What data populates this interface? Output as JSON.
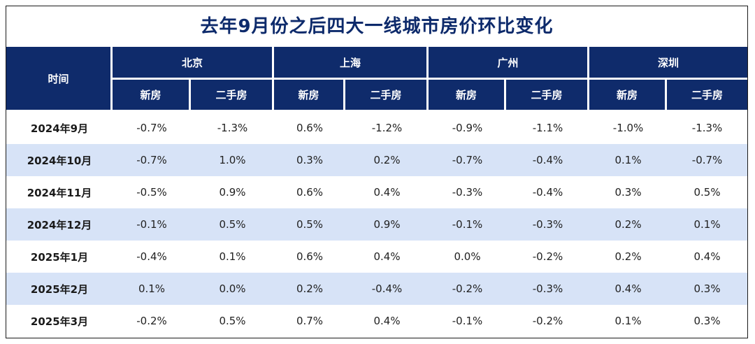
{
  "title": "去年9月份之后四大一线城市房价环比变化",
  "header": {
    "time_label": "时间",
    "cities": [
      "北京",
      "上海",
      "广州",
      "深圳"
    ],
    "sub_labels": [
      "新房",
      "二手房"
    ]
  },
  "rows": [
    {
      "month": "2024年9月",
      "values": [
        "-0.7%",
        "-1.3%",
        "0.6%",
        "-1.2%",
        "-0.9%",
        "-1.1%",
        "-1.0%",
        "-1.3%"
      ]
    },
    {
      "month": "2024年10月",
      "values": [
        "-0.7%",
        "1.0%",
        "0.3%",
        "0.2%",
        "-0.7%",
        "-0.4%",
        "0.1%",
        "-0.7%"
      ]
    },
    {
      "month": "2024年11月",
      "values": [
        "-0.5%",
        "0.9%",
        "0.6%",
        "0.4%",
        "-0.3%",
        "-0.4%",
        "0.3%",
        "0.5%"
      ]
    },
    {
      "month": "2024年12月",
      "values": [
        "-0.1%",
        "0.5%",
        "0.5%",
        "0.9%",
        "-0.1%",
        "-0.3%",
        "0.2%",
        "0.1%"
      ]
    },
    {
      "month": "2025年1月",
      "values": [
        "-0.4%",
        "0.1%",
        "0.6%",
        "0.4%",
        "0.0%",
        "-0.2%",
        "0.2%",
        "0.4%"
      ]
    },
    {
      "month": "2025年2月",
      "values": [
        "0.1%",
        "0.0%",
        "0.2%",
        "-0.4%",
        "-0.2%",
        "-0.3%",
        "0.4%",
        "0.3%"
      ]
    },
    {
      "month": "2025年3月",
      "values": [
        "-0.2%",
        "0.5%",
        "0.7%",
        "0.4%",
        "-0.1%",
        "-0.2%",
        "0.1%",
        "0.3%"
      ]
    }
  ],
  "colors": {
    "header_bg": "#0f2b6b",
    "title_color": "#0d2a6b",
    "alt_row_bg": "#d7e3f7"
  }
}
